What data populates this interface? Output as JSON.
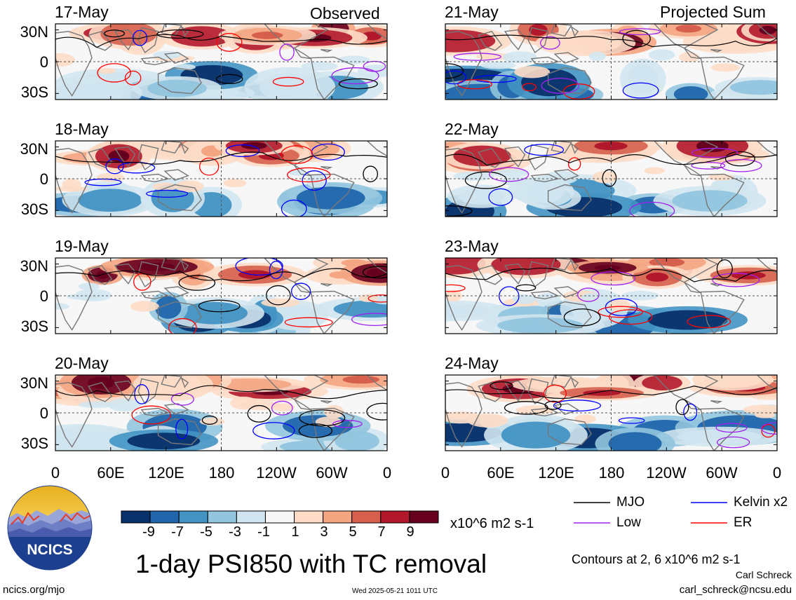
{
  "panels": [
    {
      "date": "17-May",
      "tag": "Observed"
    },
    {
      "date": "18-May",
      "tag": ""
    },
    {
      "date": "19-May",
      "tag": ""
    },
    {
      "date": "20-May",
      "tag": ""
    },
    {
      "date": "21-May",
      "tag": "Projected Sum"
    },
    {
      "date": "22-May",
      "tag": ""
    },
    {
      "date": "23-May",
      "tag": ""
    },
    {
      "date": "24-May",
      "tag": ""
    }
  ],
  "lat_labels": [
    "30N",
    "0",
    "30S"
  ],
  "lon_labels": [
    "0",
    "60E",
    "120E",
    "180",
    "120W",
    "60W",
    "0"
  ],
  "colorbar": {
    "labels": [
      "-9",
      "-7",
      "-5",
      "-3",
      "-1",
      "1",
      "3",
      "5",
      "7",
      "9"
    ],
    "units": "x10^6 m2 s-1",
    "colors": [
      "#08306b",
      "#2166ac",
      "#4393c3",
      "#92c5de",
      "#d1e5f0",
      "#f7f7f7",
      "#fddbc7",
      "#f4a582",
      "#d6604d",
      "#b2182b",
      "#67001f"
    ]
  },
  "legend": [
    {
      "label": "MJO",
      "color": "#000000"
    },
    {
      "label": "Kelvin x2",
      "color": "#0000ff"
    },
    {
      "label": "Low",
      "color": "#a020f0"
    },
    {
      "label": "ER",
      "color": "#ff0000"
    }
  ],
  "title": "1-day PSI850 with TC removal",
  "contour_note": "Contours at 2, 6 x10^6 m2 s-1",
  "author": "Carl Schreck",
  "email": "carl_schreck@ncsu.edu",
  "site": "ncics.org/mjo",
  "timestamp": "Wed 2025-05-21 1011 UTC",
  "logo_text": "NCICS"
}
